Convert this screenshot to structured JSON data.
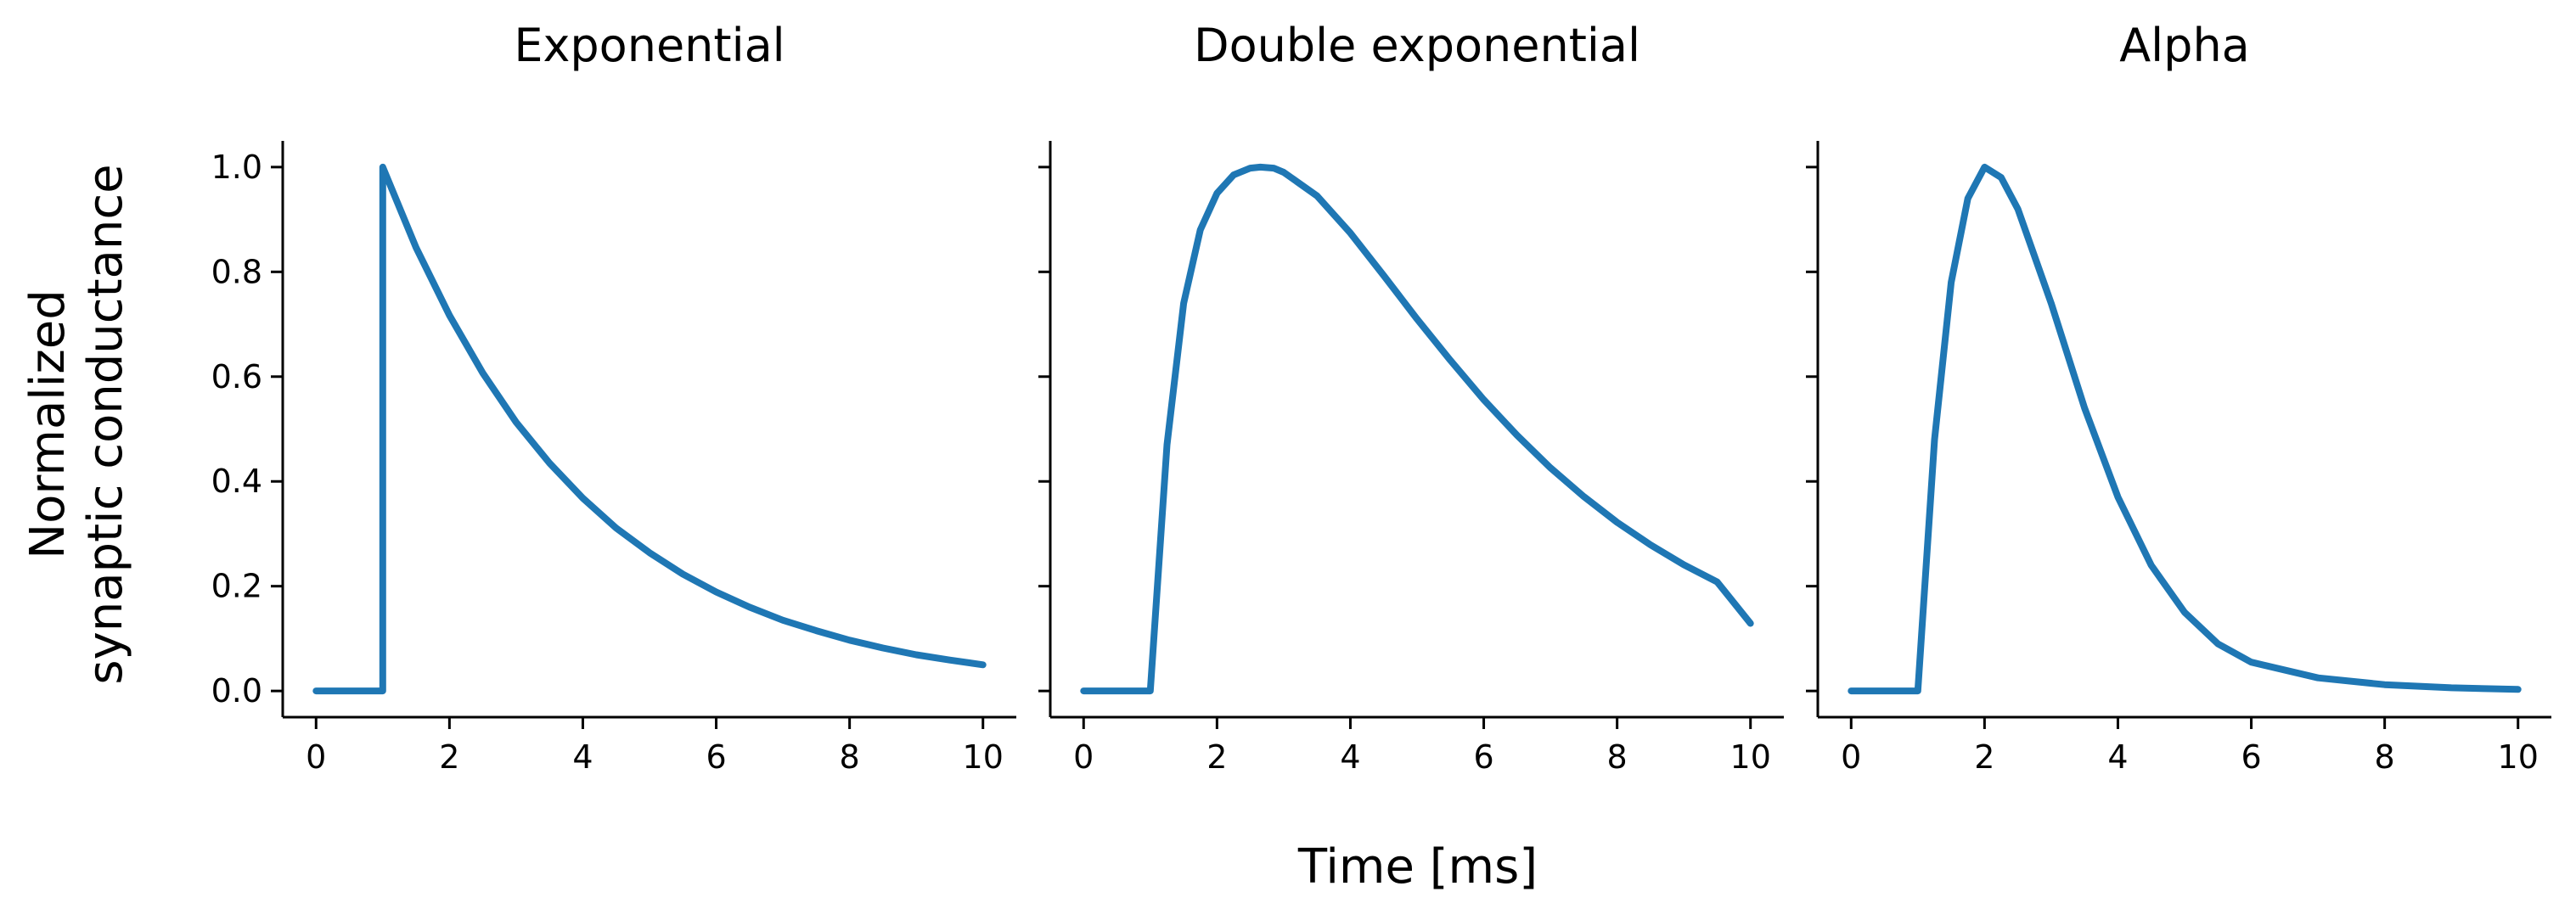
{
  "figure": {
    "xlabel": "Time [ms]",
    "ylabel_line1": "Normalized",
    "ylabel_line2": "synaptic conductance"
  },
  "chart_data": [
    {
      "type": "line",
      "title": "Exponential",
      "xlabel": "Time [ms]",
      "ylabel": "Normalized synaptic conductance",
      "xlim": [
        -0.5,
        10.5
      ],
      "ylim": [
        -0.05,
        1.05
      ],
      "xticks": [
        0,
        2,
        4,
        6,
        8,
        10
      ],
      "yticks": [
        0.0,
        0.2,
        0.4,
        0.6,
        0.8,
        1.0
      ],
      "ytick_labels": [
        "0.0",
        "0.2",
        "0.4",
        "0.6",
        "0.8",
        "1.0"
      ],
      "grid": false,
      "color": "#1f77b4",
      "x": [
        0,
        1,
        1,
        1.5,
        2,
        2.5,
        3,
        3.5,
        4,
        4.5,
        5,
        5.5,
        6,
        6.5,
        7,
        7.5,
        8,
        8.5,
        9,
        9.5,
        10
      ],
      "y": [
        0,
        0,
        1.0,
        0.846,
        0.717,
        0.607,
        0.513,
        0.435,
        0.368,
        0.311,
        0.264,
        0.223,
        0.189,
        0.16,
        0.135,
        0.115,
        0.097,
        0.082,
        0.069,
        0.059,
        0.05
      ]
    },
    {
      "type": "line",
      "title": "Double exponential",
      "xlim": [
        -0.5,
        10.5
      ],
      "ylim": [
        -0.05,
        1.05
      ],
      "xticks": [
        0,
        2,
        4,
        6,
        8,
        10
      ],
      "yticks": [
        0.0,
        0.2,
        0.4,
        0.6,
        0.8,
        1.0
      ],
      "grid": false,
      "color": "#1f77b4",
      "x": [
        0,
        1,
        1.25,
        1.5,
        1.75,
        2,
        2.25,
        2.5,
        2.65,
        2.85,
        3,
        3.5,
        4,
        4.5,
        5,
        5.5,
        6,
        6.5,
        7,
        7.5,
        8,
        8.5,
        9,
        9.5,
        10
      ],
      "y": [
        0,
        0,
        0.47,
        0.74,
        0.88,
        0.95,
        0.985,
        0.998,
        1.0,
        0.998,
        0.99,
        0.945,
        0.874,
        0.793,
        0.71,
        0.631,
        0.556,
        0.488,
        0.426,
        0.371,
        0.322,
        0.279,
        0.241,
        0.208,
        0.129
      ]
    },
    {
      "type": "line",
      "title": "Alpha",
      "xlim": [
        -0.5,
        10.5
      ],
      "ylim": [
        -0.05,
        1.05
      ],
      "xticks": [
        0,
        2,
        4,
        6,
        8,
        10
      ],
      "yticks": [
        0.0,
        0.2,
        0.4,
        0.6,
        0.8,
        1.0
      ],
      "grid": false,
      "color": "#1f77b4",
      "x": [
        0,
        1,
        1.25,
        1.5,
        1.75,
        2,
        2.25,
        2.5,
        3,
        3.5,
        4,
        4.5,
        5,
        5.5,
        6,
        7,
        8,
        9,
        10
      ],
      "y": [
        0,
        0,
        0.48,
        0.78,
        0.94,
        1.0,
        0.98,
        0.92,
        0.74,
        0.54,
        0.37,
        0.24,
        0.15,
        0.09,
        0.055,
        0.025,
        0.012,
        0.006,
        0.003
      ]
    }
  ]
}
